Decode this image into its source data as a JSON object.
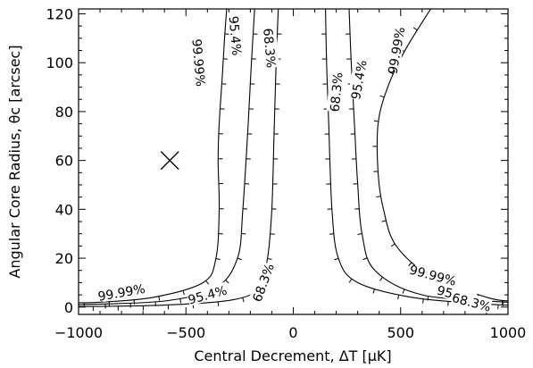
{
  "chart_data": {
    "type": "line",
    "title": "",
    "xlabel": "Central Decrement, ΔT [μK]",
    "ylabel": "Angular Core Radius, θc [arcsec]",
    "xlim": [
      -1000,
      1000
    ],
    "ylim": [
      -3,
      122
    ],
    "xticks": [
      -1000,
      -500,
      0,
      500,
      1000
    ],
    "yticks": [
      0,
      20,
      40,
      60,
      80,
      100,
      120
    ],
    "grid": false,
    "legend": "none",
    "marker": {
      "symbol": "X",
      "x": -575,
      "y": 60
    },
    "series": [
      {
        "name": "68.3%",
        "label": "68.3%",
        "points": [
          [
            -70,
            122
          ],
          [
            -80,
            100
          ],
          [
            -90,
            70
          ],
          [
            -100,
            40
          ],
          [
            -120,
            20
          ],
          [
            -160,
            8
          ],
          [
            -280,
            3
          ],
          [
            -600,
            0.8
          ],
          [
            -1000,
            0.2
          ]
        ]
      },
      {
        "name": "95.4%",
        "label": "95.4%",
        "points": [
          [
            -180,
            122
          ],
          [
            -195,
            100
          ],
          [
            -210,
            75
          ],
          [
            -235,
            40
          ],
          [
            -260,
            20
          ],
          [
            -360,
            8
          ],
          [
            -600,
            2.5
          ],
          [
            -1000,
            1
          ]
        ]
      },
      {
        "name": "99.99%",
        "label": "99.99%",
        "points": [
          [
            -310,
            122
          ],
          [
            -320,
            110
          ],
          [
            -330,
            95
          ],
          [
            -345,
            75
          ],
          [
            -350,
            60
          ],
          [
            -345,
            40
          ],
          [
            -360,
            20
          ],
          [
            -420,
            10
          ],
          [
            -650,
            4
          ],
          [
            -900,
            2
          ],
          [
            -1000,
            1.8
          ]
        ]
      },
      {
        "name": "68.3%",
        "label": "68.3%",
        "points": [
          [
            150,
            122
          ],
          [
            155,
            100
          ],
          [
            165,
            75
          ],
          [
            180,
            40
          ],
          [
            210,
            20
          ],
          [
            300,
            10
          ],
          [
            550,
            4
          ],
          [
            850,
            1.5
          ],
          [
            1000,
            0.8
          ]
        ]
      },
      {
        "name": "95.4%",
        "label": "95.4%",
        "points": [
          [
            260,
            122
          ],
          [
            270,
            100
          ],
          [
            285,
            75
          ],
          [
            300,
            50
          ],
          [
            320,
            30
          ],
          [
            380,
            15
          ],
          [
            600,
            5
          ],
          [
            1000,
            2
          ]
        ]
      },
      {
        "name": "99.99%",
        "label": "99.99%",
        "points": [
          [
            640,
            122
          ],
          [
            520,
            105
          ],
          [
            440,
            90
          ],
          [
            395,
            75
          ],
          [
            395,
            55
          ],
          [
            420,
            40
          ],
          [
            480,
            25
          ],
          [
            650,
            12
          ],
          [
            900,
            4
          ],
          [
            1000,
            2.5
          ]
        ]
      }
    ],
    "contour_labels": [
      {
        "text": "99.99%",
        "x": -440,
        "y": 100,
        "angle": 85
      },
      {
        "text": "95.4%",
        "x": -270,
        "y": 111,
        "angle": 85
      },
      {
        "text": "68.3%",
        "x": -110,
        "y": 106,
        "angle": 85
      },
      {
        "text": "99.99%",
        "x": -800,
        "y": 6,
        "angle": -10
      },
      {
        "text": "95.4%",
        "x": -400,
        "y": 5,
        "angle": -15
      },
      {
        "text": "68.3%",
        "x": -140,
        "y": 10,
        "angle": -70
      },
      {
        "text": "68.3%",
        "x": 200,
        "y": 88,
        "angle": -85
      },
      {
        "text": "95.4%",
        "x": 305,
        "y": 93,
        "angle": -80
      },
      {
        "text": "99.99%",
        "x": 480,
        "y": 105,
        "angle": -80
      },
      {
        "text": "99.99%",
        "x": 650,
        "y": 13,
        "angle": 15
      },
      {
        "text": "95.4%",
        "x": 760,
        "y": 5,
        "angle": 15
      },
      {
        "text": "68.3%",
        "x": 830,
        "y": 2,
        "angle": 15
      }
    ]
  }
}
